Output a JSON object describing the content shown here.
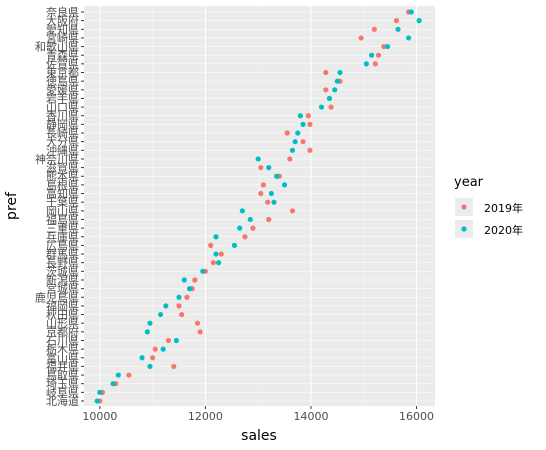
{
  "chart_data": {
    "type": "scatter",
    "xlabel": "sales",
    "ylabel": "pref",
    "xlim": [
      9700,
      16350
    ],
    "x_ticks": [
      10000,
      12000,
      14000,
      16000
    ],
    "grid": true,
    "legend_title": "year",
    "legend_position": "right",
    "categories": [
      "奈良県",
      "大阪府",
      "愛知県",
      "宮崎県",
      "和歌山県",
      "青森県",
      "佐賀県",
      "東京都",
      "徳島県",
      "愛媛県",
      "岩手県",
      "山口県",
      "香川県",
      "静岡県",
      "長崎県",
      "大分県",
      "沖縄県",
      "神奈川県",
      "滋賀県",
      "熊本県",
      "島根県",
      "高知県",
      "千葉県",
      "岡山県",
      "福島県",
      "三重県",
      "兵庫県",
      "広島県",
      "群馬県",
      "長野県",
      "茨城県",
      "新潟県",
      "宮城県",
      "鹿児島県",
      "福岡県",
      "秋田県",
      "山形県",
      "京都府",
      "石川県",
      "栃木県",
      "富山県",
      "福井県",
      "鳥取県",
      "埼玉県",
      "岐阜県",
      "北海道"
    ],
    "series": [
      {
        "name": "2019年",
        "color": "#F8766D",
        "values": [
          15850,
          15620,
          15200,
          14950,
          15380,
          15280,
          15220,
          14280,
          14550,
          14280,
          14350,
          14380,
          13950,
          13980,
          13550,
          13850,
          13980,
          13600,
          13050,
          13400,
          13100,
          13050,
          13180,
          13650,
          13200,
          12900,
          12750,
          12100,
          12300,
          12150,
          12000,
          11800,
          11750,
          11650,
          11500,
          11550,
          11850,
          11900,
          11300,
          11050,
          11000,
          11400,
          10550,
          10300,
          10050,
          10000
        ]
      },
      {
        "name": "2020年",
        "color": "#00BFC4",
        "values": [
          15900,
          16050,
          15650,
          15850,
          15450,
          15150,
          15050,
          14550,
          14500,
          14450,
          14350,
          14200,
          13800,
          13850,
          13750,
          13700,
          13650,
          13000,
          13200,
          13350,
          13500,
          13250,
          13300,
          12700,
          12850,
          12650,
          12200,
          12550,
          12200,
          12250,
          11950,
          11600,
          11700,
          11500,
          11250,
          11150,
          10950,
          10900,
          11450,
          11200,
          10800,
          10950,
          10350,
          10250,
          10000,
          9950
        ]
      }
    ]
  }
}
